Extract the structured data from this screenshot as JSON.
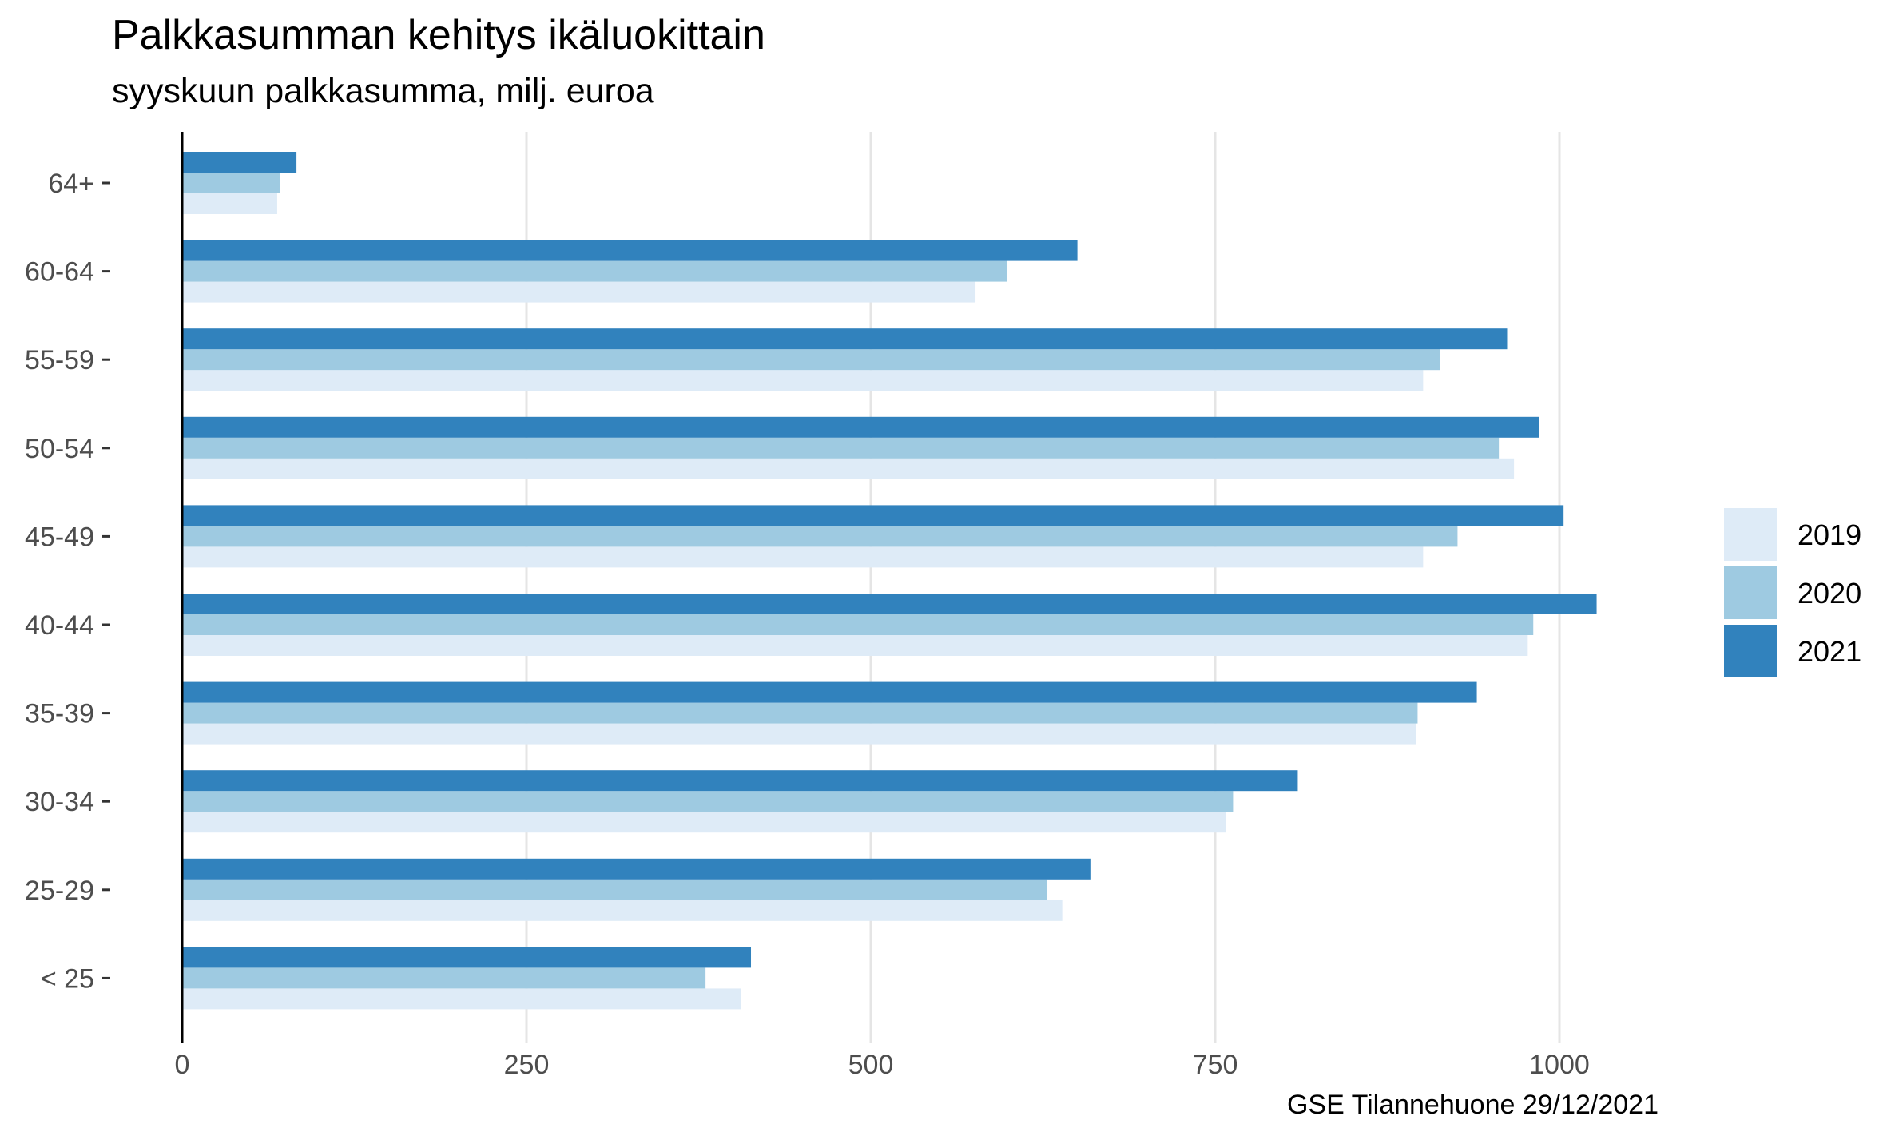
{
  "chart_data": {
    "type": "bar",
    "orientation": "horizontal",
    "title": "Palkkasumman kehitys ikäluokittain",
    "subtitle": "syyskuun palkkasumma, milj. euroa",
    "caption": "GSE Tilannehuone 29/12/2021",
    "xlabel": "",
    "ylabel": "",
    "categories": [
      "64+",
      "60-64",
      "55-59",
      "50-54",
      "45-49",
      "40-44",
      "35-39",
      "30-34",
      "25-29",
      "< 25"
    ],
    "series": [
      {
        "name": "2019",
        "color": "#deebf7",
        "values": [
          69,
          576,
          901,
          967,
          901,
          977,
          896,
          758,
          639,
          406
        ]
      },
      {
        "name": "2020",
        "color": "#9ecae1",
        "values": [
          71,
          599,
          913,
          956,
          926,
          981,
          897,
          763,
          628,
          380
        ]
      },
      {
        "name": "2021",
        "color": "#3182bd",
        "values": [
          83,
          650,
          962,
          985,
          1003,
          1027,
          940,
          810,
          660,
          413
        ]
      }
    ],
    "xlim": [
      0,
      1150
    ],
    "xticks": [
      0,
      250,
      500,
      750,
      1000
    ],
    "xtick_labels": [
      "0",
      "250",
      "500",
      "750",
      "1000"
    ],
    "grid": "vertical-major",
    "legend_position": "right"
  }
}
